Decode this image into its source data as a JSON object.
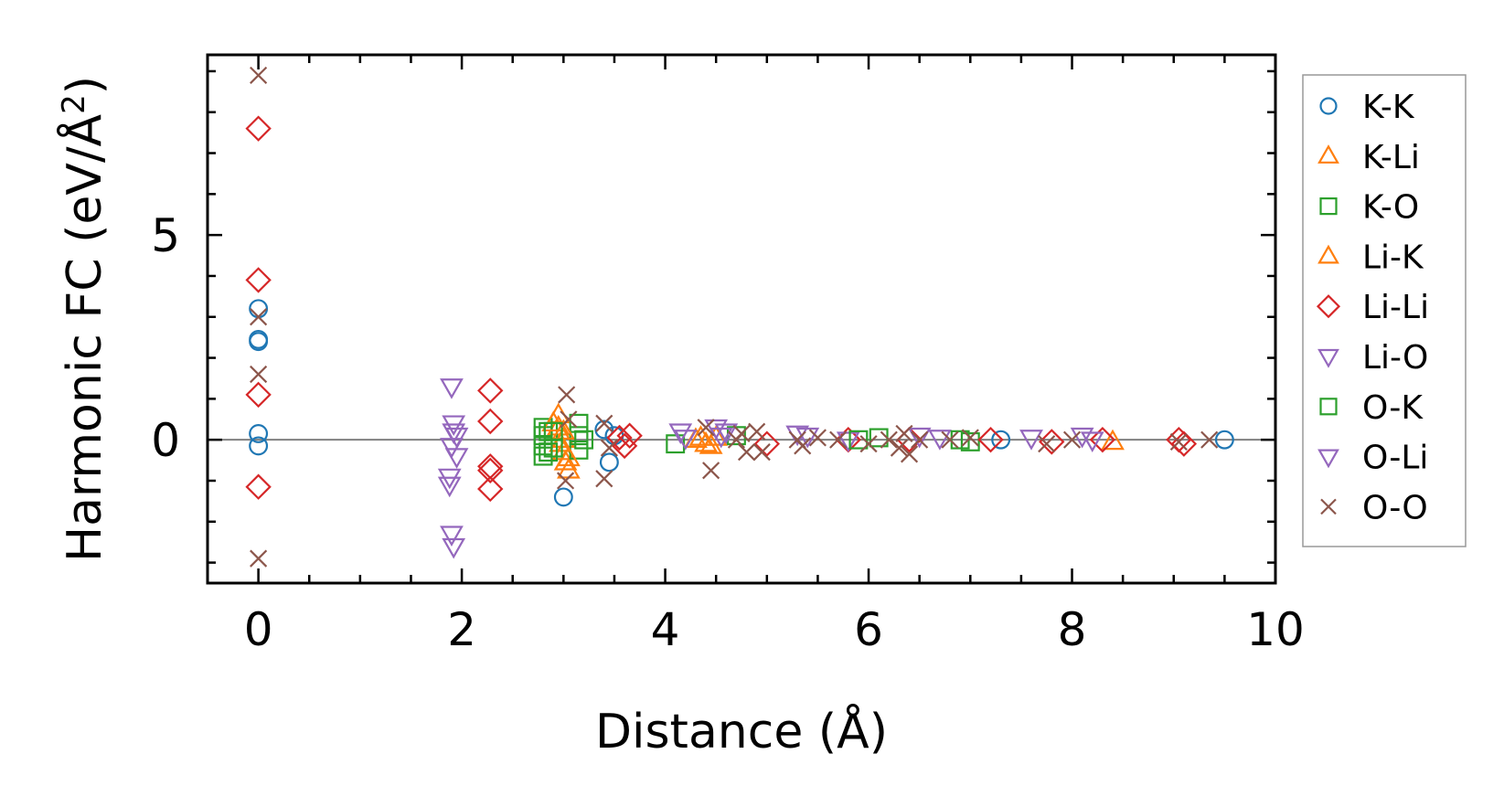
{
  "chart_data": {
    "type": "scatter",
    "title": "",
    "xlabel": "Distance (Å)",
    "ylabel_main": "Harmonic FC (eV/Å",
    "ylabel_sup": "2",
    "ylabel_close": ")",
    "xlim": [
      -0.5,
      10
    ],
    "ylim": [
      -3.5,
      9.4
    ],
    "x_ticks": [
      0,
      2,
      4,
      6,
      8,
      10
    ],
    "x_tick_labels": [
      "0",
      "2",
      "4",
      "6",
      "8",
      "10"
    ],
    "y_ticks": [
      0,
      5
    ],
    "y_tick_labels": [
      "0",
      "5"
    ],
    "x_minor_step": 0.5,
    "y_minor_step": 1,
    "zero_line": true,
    "grid": false,
    "legend_position": "outside-right",
    "colors": {
      "blue": "#1f77b4",
      "orange": "#ff7f0e",
      "green": "#2ca02c",
      "red": "#d62728",
      "purple": "#9467bd",
      "brown": "#8c564b",
      "zero_line": "#808080"
    },
    "series": [
      {
        "name": "K-K",
        "marker": "circle",
        "color": "#1f77b4",
        "points": [
          [
            0,
            3.2
          ],
          [
            0,
            2.45
          ],
          [
            0,
            2.4
          ],
          [
            0,
            0.15
          ],
          [
            0,
            -0.15
          ],
          [
            3.0,
            -1.4
          ],
          [
            3.4,
            0.25
          ],
          [
            3.45,
            -0.55
          ],
          [
            3.5,
            0.1
          ],
          [
            7.3,
            0.0
          ],
          [
            9.5,
            0.0
          ]
        ]
      },
      {
        "name": "K-Li",
        "marker": "triangle-up",
        "color": "#ff7f0e",
        "points": [
          [
            2.95,
            0.6
          ],
          [
            2.95,
            0.3
          ],
          [
            2.97,
            -0.1
          ],
          [
            3.0,
            0.0
          ],
          [
            3.0,
            -0.3
          ],
          [
            3.02,
            -0.55
          ],
          [
            3.05,
            -0.75
          ],
          [
            4.35,
            0.05
          ],
          [
            4.4,
            -0.1
          ],
          [
            4.5,
            0.05
          ],
          [
            8.4,
            -0.05
          ]
        ]
      },
      {
        "name": "K-O",
        "marker": "square",
        "color": "#2ca02c",
        "points": [
          [
            2.8,
            -0.4
          ],
          [
            2.8,
            -0.15
          ],
          [
            2.8,
            0.1
          ],
          [
            2.8,
            0.3
          ],
          [
            2.85,
            -0.3
          ],
          [
            2.85,
            0.2
          ],
          [
            3.15,
            0.4
          ],
          [
            3.15,
            0.1
          ],
          [
            3.15,
            -0.25
          ],
          [
            4.1,
            -0.1
          ],
          [
            4.7,
            0.1
          ],
          [
            6.1,
            0.05
          ],
          [
            7.0,
            -0.05
          ]
        ]
      },
      {
        "name": "Li-K",
        "marker": "triangle-up",
        "color": "#ff7f0e",
        "points": [
          [
            2.9,
            0.4
          ],
          [
            3.0,
            0.2
          ],
          [
            3.05,
            -0.45
          ],
          [
            4.3,
            0.0
          ],
          [
            4.45,
            -0.15
          ]
        ]
      },
      {
        "name": "Li-Li",
        "marker": "diamond",
        "color": "#d62728",
        "points": [
          [
            0,
            7.6
          ],
          [
            0,
            3.9
          ],
          [
            0,
            1.1
          ],
          [
            0,
            -1.15
          ],
          [
            2.28,
            1.2
          ],
          [
            2.28,
            0.45
          ],
          [
            2.28,
            -0.65
          ],
          [
            2.28,
            -0.75
          ],
          [
            2.28,
            -1.2
          ],
          [
            3.55,
            0.05
          ],
          [
            3.6,
            -0.15
          ],
          [
            3.65,
            0.1
          ],
          [
            5.0,
            -0.1
          ],
          [
            5.8,
            0.0
          ],
          [
            6.4,
            0.0
          ],
          [
            7.2,
            0.0
          ],
          [
            7.8,
            -0.05
          ],
          [
            8.3,
            0.0
          ],
          [
            9.05,
            0.0
          ],
          [
            9.1,
            -0.1
          ]
        ]
      },
      {
        "name": "Li-O",
        "marker": "triangle-down",
        "color": "#9467bd",
        "points": [
          [
            1.9,
            1.3
          ],
          [
            1.92,
            0.4
          ],
          [
            1.92,
            0.2
          ],
          [
            1.9,
            -0.15
          ],
          [
            1.88,
            -0.9
          ],
          [
            1.88,
            -1.1
          ],
          [
            1.9,
            -2.3
          ],
          [
            1.92,
            -2.6
          ],
          [
            4.15,
            0.2
          ],
          [
            4.2,
            0.05
          ],
          [
            4.5,
            0.3
          ],
          [
            4.55,
            0.1
          ],
          [
            5.3,
            0.15
          ],
          [
            5.8,
            0.0
          ],
          [
            6.7,
            0.05
          ],
          [
            7.6,
            0.05
          ],
          [
            8.2,
            0.0
          ]
        ]
      },
      {
        "name": "O-K",
        "marker": "square",
        "color": "#2ca02c",
        "points": [
          [
            2.9,
            0.2
          ],
          [
            2.9,
            -0.2
          ],
          [
            3.2,
            0.0
          ],
          [
            5.9,
            0.0
          ],
          [
            6.9,
            0.0
          ]
        ]
      },
      {
        "name": "O-Li",
        "marker": "triangle-down",
        "color": "#9467bd",
        "points": [
          [
            1.95,
            -0.4
          ],
          [
            1.95,
            0.1
          ],
          [
            4.6,
            0.2
          ],
          [
            5.4,
            0.1
          ],
          [
            6.5,
            0.1
          ],
          [
            8.1,
            0.1
          ]
        ]
      },
      {
        "name": "O-O",
        "marker": "x",
        "color": "#8c564b",
        "points": [
          [
            0,
            8.9
          ],
          [
            0,
            3.0
          ],
          [
            0,
            1.6
          ],
          [
            0,
            -2.9
          ],
          [
            3.03,
            1.1
          ],
          [
            3.05,
            0.5
          ],
          [
            3.02,
            -1.0
          ],
          [
            3.4,
            0.4
          ],
          [
            3.4,
            -0.95
          ],
          [
            3.45,
            -0.2
          ],
          [
            4.4,
            0.3
          ],
          [
            4.45,
            -0.75
          ],
          [
            4.7,
            0.0
          ],
          [
            4.75,
            0.15
          ],
          [
            4.8,
            -0.3
          ],
          [
            4.9,
            0.2
          ],
          [
            4.95,
            -0.3
          ],
          [
            5.3,
            0.0
          ],
          [
            5.35,
            -0.15
          ],
          [
            5.5,
            0.05
          ],
          [
            5.7,
            0.0
          ],
          [
            6.0,
            -0.1
          ],
          [
            6.2,
            0.0
          ],
          [
            6.3,
            -0.2
          ],
          [
            6.35,
            0.15
          ],
          [
            6.4,
            -0.35
          ],
          [
            6.5,
            0.0
          ],
          [
            6.8,
            0.0
          ],
          [
            7.0,
            0.05
          ],
          [
            7.75,
            -0.1
          ],
          [
            8.0,
            0.0
          ],
          [
            9.05,
            -0.05
          ],
          [
            9.35,
            0.0
          ]
        ]
      }
    ]
  }
}
